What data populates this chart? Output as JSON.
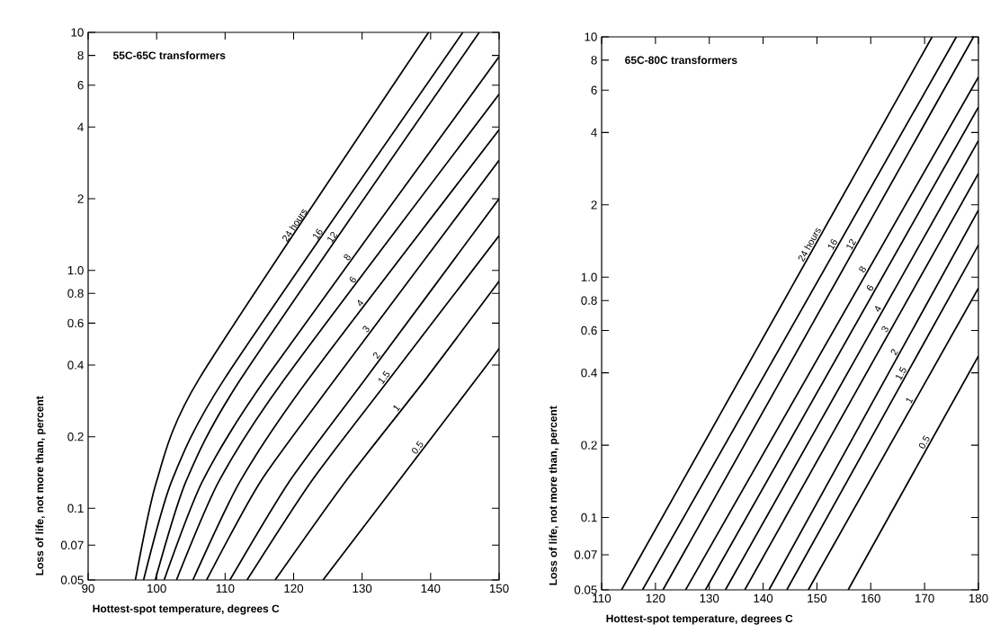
{
  "chart_data": [
    {
      "type": "line",
      "title": "55C-65C transformers",
      "xlabel": "Hottest-spot temperature, degrees C",
      "ylabel": "Loss of life, not more than, percent",
      "log": "y",
      "color": "#000000",
      "marker": "none",
      "line_style": "solid",
      "xlim": [
        90,
        150
      ],
      "xticks": [
        90,
        100,
        110,
        120,
        130,
        140,
        150
      ],
      "ylim": [
        0.05,
        10
      ],
      "yticks": [
        0.05,
        0.07,
        0.1,
        0.2,
        0.4,
        0.6,
        0.8,
        {
          "value": 1,
          "label": "1.0"
        },
        2,
        4,
        6,
        8,
        10
      ],
      "series": [
        {
          "name": "24 hours",
          "x": [
            96.9,
            100.0,
            106.2,
            139.7
          ],
          "values": [
            0.05,
            0.13,
            0.35,
            10
          ]
        },
        {
          "name": "16",
          "x": [
            98.1,
            102.2,
            109.9,
            144.7
          ],
          "values": [
            0.05,
            0.13,
            0.35,
            10
          ]
        },
        {
          "name": "12",
          "x": [
            99.8,
            104.3,
            112.3,
            147.1
          ],
          "values": [
            0.05,
            0.13,
            0.35,
            10
          ]
        },
        {
          "name": "8",
          "x": [
            101.1,
            106.7,
            115.9,
            150
          ],
          "values": [
            0.05,
            0.13,
            0.35,
            7.9
          ]
        },
        {
          "name": "6",
          "x": [
            102.9,
            109.1,
            118.7,
            150
          ],
          "values": [
            0.05,
            0.13,
            0.35,
            5.5
          ]
        },
        {
          "name": "4",
          "x": [
            105.3,
            112.2,
            122.2,
            150
          ],
          "values": [
            0.05,
            0.13,
            0.35,
            3.9
          ]
        },
        {
          "name": "3",
          "x": [
            107.3,
            115.2,
            126.1,
            150
          ],
          "values": [
            0.05,
            0.13,
            0.35,
            2.9
          ]
        },
        {
          "name": "2",
          "x": [
            110.7,
            119.4,
            130.5,
            150
          ],
          "values": [
            0.05,
            0.13,
            0.35,
            2.0
          ]
        },
        {
          "name": "1.5",
          "x": [
            113.2,
            122.6,
            134.0,
            150
          ],
          "values": [
            0.05,
            0.13,
            0.35,
            1.4
          ]
        },
        {
          "name": "1",
          "x": [
            117.3,
            127.6,
            139.3,
            150
          ],
          "values": [
            0.05,
            0.13,
            0.35,
            0.9
          ]
        },
        {
          "name": "0.5",
          "x": [
            124.3,
            146.7,
            150
          ],
          "values": [
            0.05,
            0.35,
            0.47
          ]
        }
      ]
    },
    {
      "type": "line",
      "title": "65C-80C transformers",
      "xlabel": "Hottest-spot temperature, degrees C",
      "ylabel": "Loss of life, not more than, percent",
      "log": "y",
      "color": "#000000",
      "marker": "none",
      "line_style": "solid",
      "xlim": [
        110,
        180
      ],
      "xticks": [
        110,
        120,
        130,
        140,
        150,
        160,
        170,
        180
      ],
      "ylim": [
        0.05,
        10
      ],
      "yticks": [
        0.05,
        0.07,
        0.1,
        0.2,
        0.4,
        0.6,
        0.8,
        {
          "value": 1,
          "label": "1.0"
        },
        2,
        4,
        6,
        8,
        10
      ],
      "series": [
        {
          "name": "24 hours",
          "x": [
            113.7,
            171.4
          ],
          "values": [
            0.05,
            10
          ]
        },
        {
          "name": "16",
          "x": [
            117.6,
            175.9
          ],
          "values": [
            0.05,
            10
          ]
        },
        {
          "name": "12",
          "x": [
            121.4,
            179.1
          ],
          "values": [
            0.05,
            10
          ]
        },
        {
          "name": "8",
          "x": [
            125.6,
            180
          ],
          "values": [
            0.05,
            6.8
          ]
        },
        {
          "name": "6",
          "x": [
            129.3,
            180
          ],
          "values": [
            0.05,
            5.1
          ]
        },
        {
          "name": "4",
          "x": [
            133.0,
            180
          ],
          "values": [
            0.05,
            3.7
          ]
        },
        {
          "name": "3",
          "x": [
            136.6,
            180
          ],
          "values": [
            0.05,
            2.7
          ]
        },
        {
          "name": "2",
          "x": [
            141.1,
            180
          ],
          "values": [
            0.05,
            1.9
          ]
        },
        {
          "name": "1.5",
          "x": [
            144.4,
            180
          ],
          "values": [
            0.05,
            1.36
          ]
        },
        {
          "name": "1",
          "x": [
            148.4,
            180
          ],
          "values": [
            0.05,
            0.9
          ]
        },
        {
          "name": "0.5",
          "x": [
            155.8,
            180
          ],
          "values": [
            0.05,
            0.47
          ]
        }
      ]
    }
  ]
}
